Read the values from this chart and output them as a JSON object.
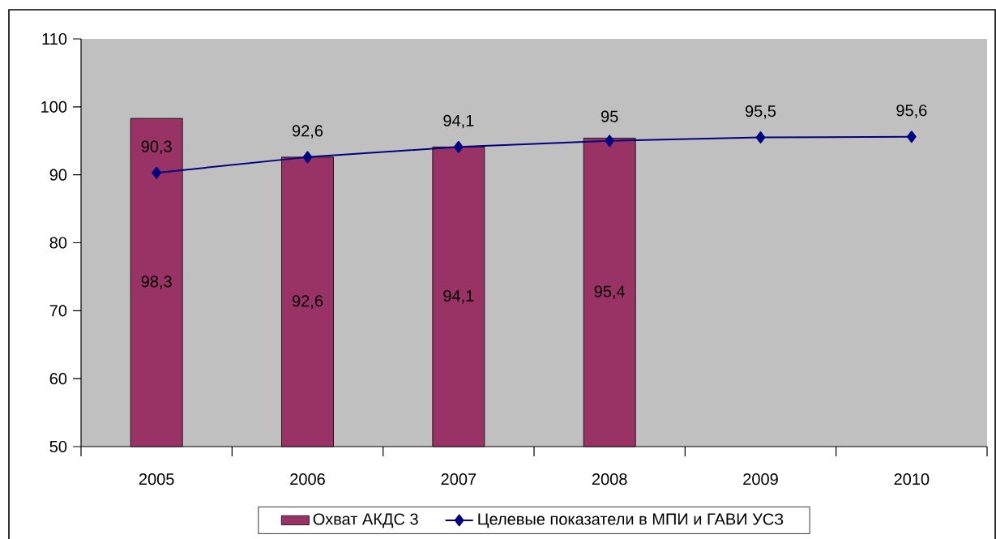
{
  "chart_data": {
    "type": "bar",
    "categories": [
      "2005",
      "2006",
      "2007",
      "2008",
      "2009",
      "2010"
    ],
    "series": [
      {
        "name": "Охват АКДС 3",
        "color": "#993366",
        "values": [
          98.3,
          92.6,
          94.1,
          95.4,
          null,
          null
        ],
        "value_labels": [
          "98,3",
          "92,6",
          "94,1",
          "95,4",
          null,
          null
        ]
      },
      {
        "name": "Целевые показатели в МПИ и ГАВИ УСЗ",
        "type": "line",
        "color": "#000080",
        "marker": "diamond",
        "values": [
          90.3,
          92.6,
          94.1,
          95,
          95.5,
          95.6
        ],
        "value_labels": [
          "90,3",
          "92,6",
          "94,1",
          "95",
          "95,5",
          "95,6"
        ]
      }
    ],
    "ylim": [
      50,
      110
    ],
    "yticks": [
      50,
      60,
      70,
      80,
      90,
      100,
      110
    ],
    "legend": "bottom"
  }
}
